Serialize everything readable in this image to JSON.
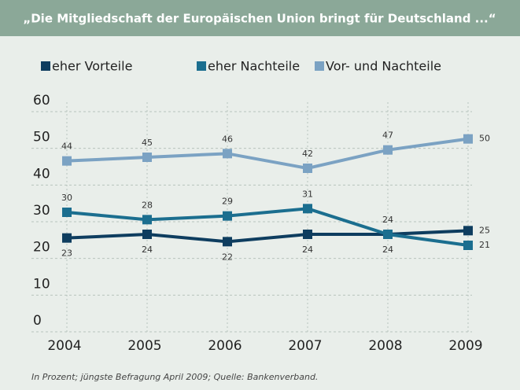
{
  "chart_data": {
    "type": "line",
    "title": "„Die Mitgliedschaft der Europäischen Union bringt für Deutschland ...“",
    "footnote": "In Prozent; jüngste Befragung April 2009; Quelle: Bankenverband.",
    "categories": [
      "2004",
      "2005",
      "2006",
      "2007",
      "2008",
      "2009"
    ],
    "series": [
      {
        "name": "eher Vorteile",
        "color": "#0e3d5f",
        "values": [
          23,
          24,
          22,
          24,
          24,
          25
        ]
      },
      {
        "name": "eher Nachteile",
        "color": "#1b6e8f",
        "values": [
          30,
          28,
          29,
          31,
          24,
          21
        ]
      },
      {
        "name": "Vor- und Nachteile",
        "color": "#7ba2c3",
        "values": [
          44,
          45,
          46,
          42,
          47,
          50
        ]
      }
    ],
    "ylim": [
      0,
      60
    ],
    "yticks": [
      0,
      10,
      20,
      30,
      40,
      50,
      60
    ],
    "grid": true
  }
}
